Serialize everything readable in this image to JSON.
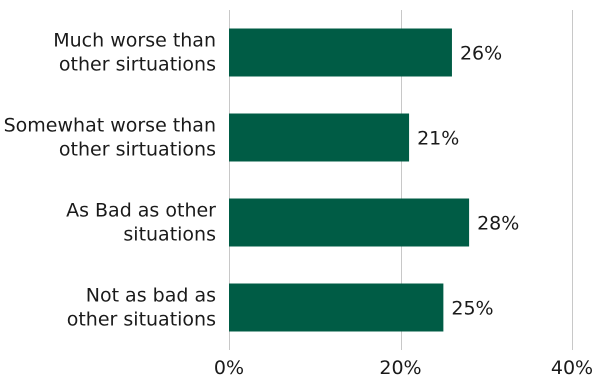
{
  "chart_data": {
    "type": "bar",
    "orientation": "horizontal",
    "categories": [
      [
        "Much worse than",
        "other sirtuations"
      ],
      [
        "Somewhat worse than",
        "other sirtuations"
      ],
      [
        "As Bad as other",
        "situations"
      ],
      [
        "Not as bad as",
        "other situations"
      ]
    ],
    "values": [
      26,
      21,
      28,
      25
    ],
    "value_labels": [
      "26%",
      "21%",
      "28%",
      "25%"
    ],
    "xlim": [
      0,
      40
    ],
    "xticks": [
      0,
      20,
      40
    ],
    "xtick_labels": [
      "0%",
      "20%",
      "40%"
    ],
    "grid": "vertical",
    "bar_color": "#005c45",
    "title": "",
    "xlabel": "",
    "ylabel": ""
  }
}
